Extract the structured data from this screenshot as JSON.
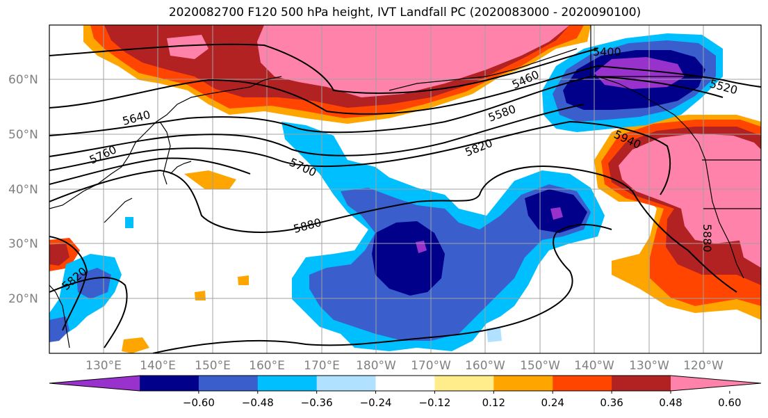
{
  "title": "2020082700 F120 500 hPa height, IVT Landfall PC (2020083000 - 2020090100)",
  "lat_labels": [
    "60°N",
    "50°N",
    "40°N",
    "30°N",
    "20°N"
  ],
  "lon_labels": [
    "130°E",
    "140°E",
    "150°E",
    "160°E",
    "170°E",
    "180°W",
    "170°W",
    "160°W",
    "150°W",
    "140°W",
    "130°W",
    "120°W"
  ],
  "height_contour_labels": [
    "5400",
    "5460",
    "5520",
    "5580",
    "5640",
    "5700",
    "5760",
    "5820",
    "5820",
    "5880",
    "5880",
    "5940"
  ],
  "colorbar": {
    "tick_labels": [
      "−0.60",
      "−0.48",
      "−0.36",
      "−0.24",
      "−0.12",
      "0.12",
      "0.24",
      "0.36",
      "0.48",
      "0.60"
    ],
    "colors": [
      "#9932cc",
      "#00008b",
      "#3a5fcd",
      "#00bfff",
      "#b0e2ff",
      "#ffffff",
      "#ffec8b",
      "#ffa500",
      "#ff4500",
      "#b22222",
      "#ff82ab"
    ]
  }
}
